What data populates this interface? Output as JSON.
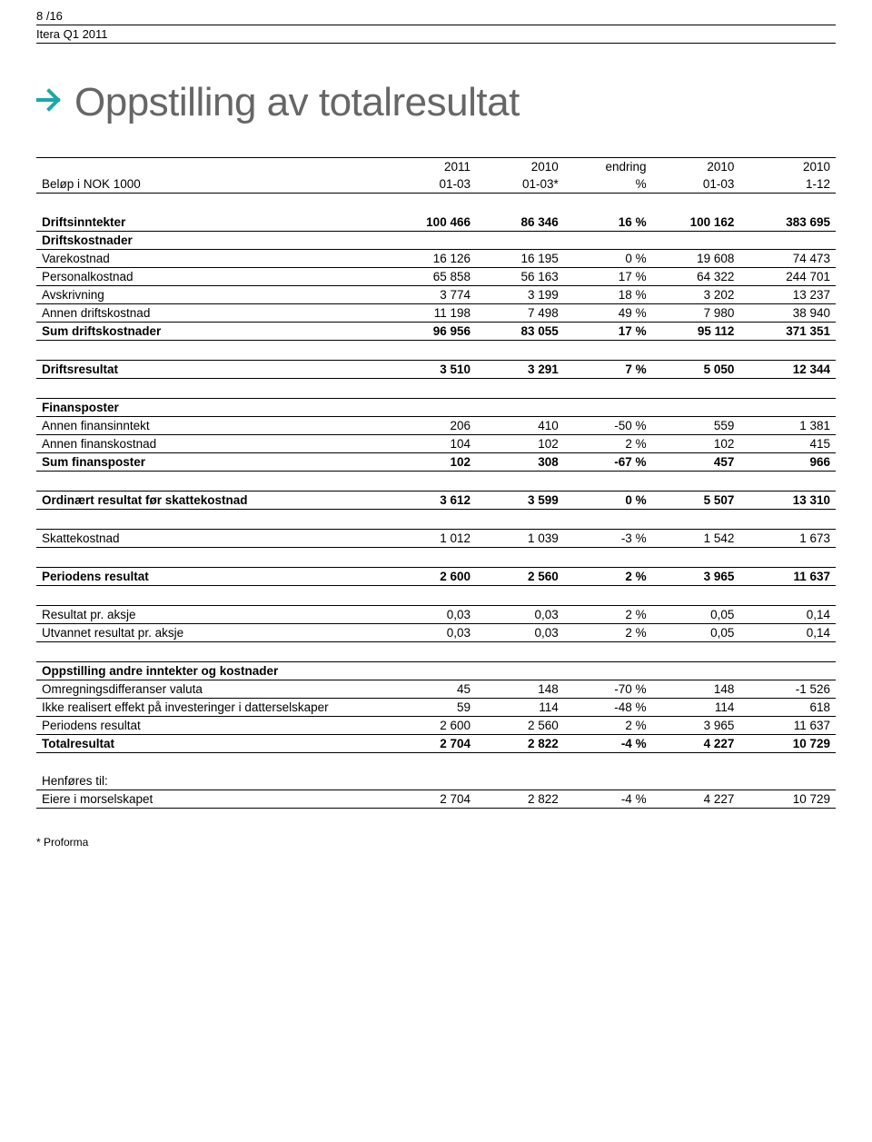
{
  "header": {
    "page_num": "8 /16",
    "report": "Itera Q1 2011"
  },
  "title": "Oppstilling av totalresultat",
  "column_headers": {
    "row1": [
      "",
      "2011",
      "2010",
      "endring",
      "2010",
      "2010"
    ],
    "row2": [
      "Beløp i NOK 1000",
      "01-03",
      "01-03*",
      "%",
      "01-03",
      "1-12"
    ]
  },
  "sections": [
    {
      "type": "row_bold",
      "label": "Driftsinntekter",
      "cells": [
        "100 466",
        "86 346",
        "16 %",
        "100 162",
        "383 695"
      ]
    },
    {
      "type": "header",
      "label": "Driftskostnader"
    },
    {
      "type": "row",
      "label": "Varekostnad",
      "cells": [
        "16 126",
        "16 195",
        "0 %",
        "19 608",
        "74 473"
      ]
    },
    {
      "type": "row",
      "label": "Personalkostnad",
      "cells": [
        "65 858",
        "56 163",
        "17 %",
        "64 322",
        "244 701"
      ]
    },
    {
      "type": "row",
      "label": "Avskrivning",
      "cells": [
        "3 774",
        "3 199",
        "18 %",
        "3 202",
        "13 237"
      ]
    },
    {
      "type": "row",
      "label": "Annen driftskostnad",
      "cells": [
        "11 198",
        "7 498",
        "49 %",
        "7 980",
        "38 940"
      ]
    },
    {
      "type": "row_bold",
      "label": "Sum driftskostnader",
      "cells": [
        "96 956",
        "83 055",
        "17 %",
        "95 112",
        "371 351"
      ]
    },
    {
      "type": "spacer"
    },
    {
      "type": "row_bold_sect",
      "label": "Driftsresultat",
      "cells": [
        "3 510",
        "3 291",
        "7 %",
        "5 050",
        "12 344"
      ]
    },
    {
      "type": "spacer"
    },
    {
      "type": "header",
      "label": "Finansposter"
    },
    {
      "type": "row",
      "label": "Annen finansinntekt",
      "cells": [
        "206",
        "410",
        "-50 %",
        "559",
        "1 381"
      ]
    },
    {
      "type": "row",
      "label": "Annen finanskostnad",
      "cells": [
        "104",
        "102",
        "2 %",
        "102",
        "415"
      ]
    },
    {
      "type": "row_bold",
      "label": "Sum finansposter",
      "cells": [
        "102",
        "308",
        "-67 %",
        "457",
        "966"
      ]
    },
    {
      "type": "spacer"
    },
    {
      "type": "row_bold_sect",
      "label": "Ordinært resultat før skattekostnad",
      "cells": [
        "3 612",
        "3 599",
        "0 %",
        "5 507",
        "13 310"
      ]
    },
    {
      "type": "spacer"
    },
    {
      "type": "row_sect",
      "label": "Skattekostnad",
      "cells": [
        "1 012",
        "1 039",
        "-3 %",
        "1 542",
        "1 673"
      ]
    },
    {
      "type": "spacer"
    },
    {
      "type": "row_bold_sect",
      "label": "Periodens resultat",
      "cells": [
        "2 600",
        "2 560",
        "2 %",
        "3 965",
        "11 637"
      ]
    },
    {
      "type": "spacer"
    },
    {
      "type": "row_line",
      "label": "Resultat pr. aksje",
      "cells": [
        "0,03",
        "0,03",
        "2 %",
        "0,05",
        "0,14"
      ]
    },
    {
      "type": "row",
      "label": "Utvannet resultat pr. aksje",
      "cells": [
        "0,03",
        "0,03",
        "2 %",
        "0,05",
        "0,14"
      ]
    },
    {
      "type": "spacer"
    },
    {
      "type": "header",
      "label": "Oppstilling andre inntekter og kostnader"
    },
    {
      "type": "row",
      "label": "Omregningsdifferanser valuta",
      "cells": [
        "45",
        "148",
        "-70 %",
        "148",
        "-1 526"
      ]
    },
    {
      "type": "row",
      "label": "Ikke realisert effekt på investeringer i datterselskaper",
      "cells": [
        "59",
        "114",
        "-48 %",
        "114",
        "618"
      ]
    },
    {
      "type": "row",
      "label": "Periodens resultat",
      "cells": [
        "2 600",
        "2 560",
        "2 %",
        "3 965",
        "11 637"
      ]
    },
    {
      "type": "row_bold",
      "label": "Totalresultat",
      "cells": [
        "2 704",
        "2 822",
        "-4 %",
        "4 227",
        "10 729"
      ]
    },
    {
      "type": "spacer"
    },
    {
      "type": "row_line_label",
      "label": "Henføres til:"
    },
    {
      "type": "row",
      "label": "Eiere i morselskapet",
      "cells": [
        "2 704",
        "2 822",
        "-4 %",
        "4 227",
        "10 729"
      ]
    }
  ],
  "footnote": "* Proforma",
  "style": {
    "title_color": "#666666",
    "accent_color": "#1aa8a8",
    "font_size_body": 13.5,
    "font_size_title": 44
  }
}
